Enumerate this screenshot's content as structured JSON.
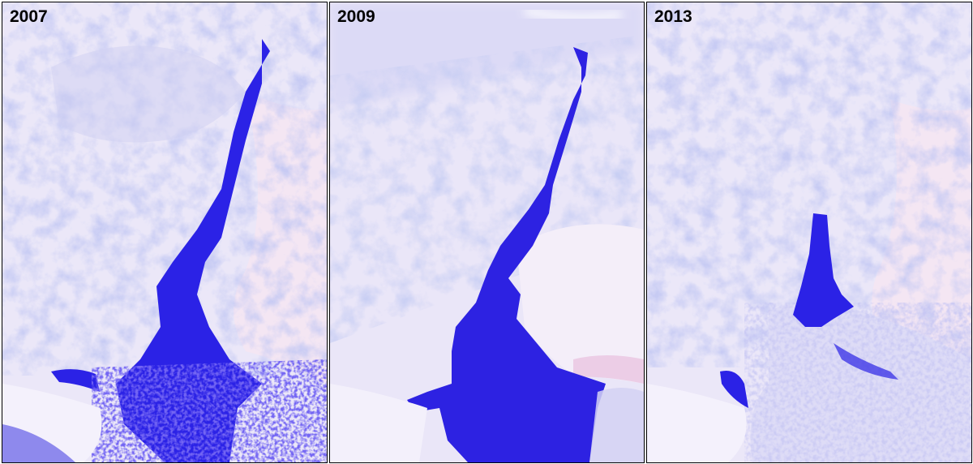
{
  "panels": [
    {
      "year": "2007"
    },
    {
      "year": "2009"
    },
    {
      "year": "2013"
    }
  ],
  "colors": {
    "water": "#2b22e6",
    "ice": "#f1eefb",
    "snow_pink": "#f5e6f2",
    "terrain": "#9aa0e0",
    "border": "#000000"
  }
}
